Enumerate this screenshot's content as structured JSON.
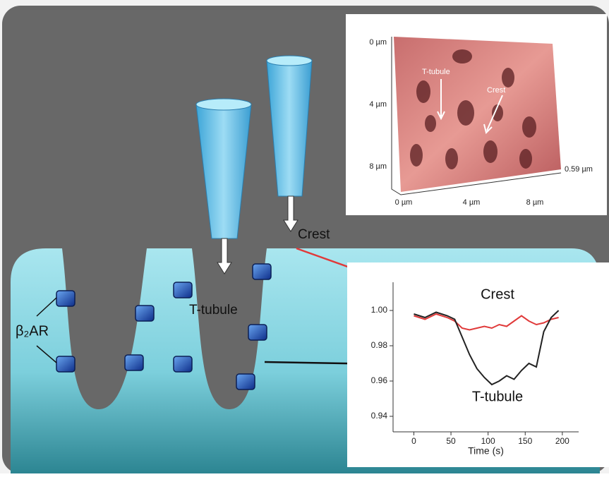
{
  "diagram": {
    "afm": {
      "y_labels": [
        "0 µm",
        "4 µm",
        "8 µm"
      ],
      "x_labels": [
        "0 µm",
        "4 µm",
        "8 µm"
      ],
      "height_label": "0.59 µm",
      "t_tubule": "T-tubule",
      "crest": "Crest"
    },
    "crest_label": "Crest",
    "t_tubule_label": "T-tubule",
    "receptor_label": "β₂AR"
  },
  "chart_data": {
    "type": "line",
    "xlabel": "Time (s)",
    "x": [
      0,
      15,
      30,
      45,
      55,
      65,
      75,
      85,
      95,
      105,
      115,
      125,
      135,
      145,
      155,
      165,
      175,
      185,
      195
    ],
    "series": [
      {
        "name": "Crest",
        "color": "#e03a3a",
        "values": [
          0.997,
          0.995,
          0.998,
          0.996,
          0.994,
          0.99,
          0.989,
          0.99,
          0.991,
          0.99,
          0.992,
          0.991,
          0.994,
          0.997,
          0.994,
          0.992,
          0.993,
          0.995,
          0.996
        ]
      },
      {
        "name": "T-tubule",
        "color": "#222222",
        "values": [
          0.998,
          0.996,
          0.999,
          0.997,
          0.995,
          0.985,
          0.975,
          0.967,
          0.962,
          0.958,
          0.96,
          0.963,
          0.961,
          0.966,
          0.97,
          0.968,
          0.988,
          0.996,
          1.0
        ]
      }
    ],
    "xlim": [
      -28,
      222
    ],
    "ylim": [
      0.936,
      1.016
    ],
    "xticks": [
      0,
      50,
      100,
      150,
      200
    ],
    "yticks": [
      {
        "value": 1,
        "label": "1.00"
      },
      0.98,
      0.96,
      0.94
    ]
  }
}
